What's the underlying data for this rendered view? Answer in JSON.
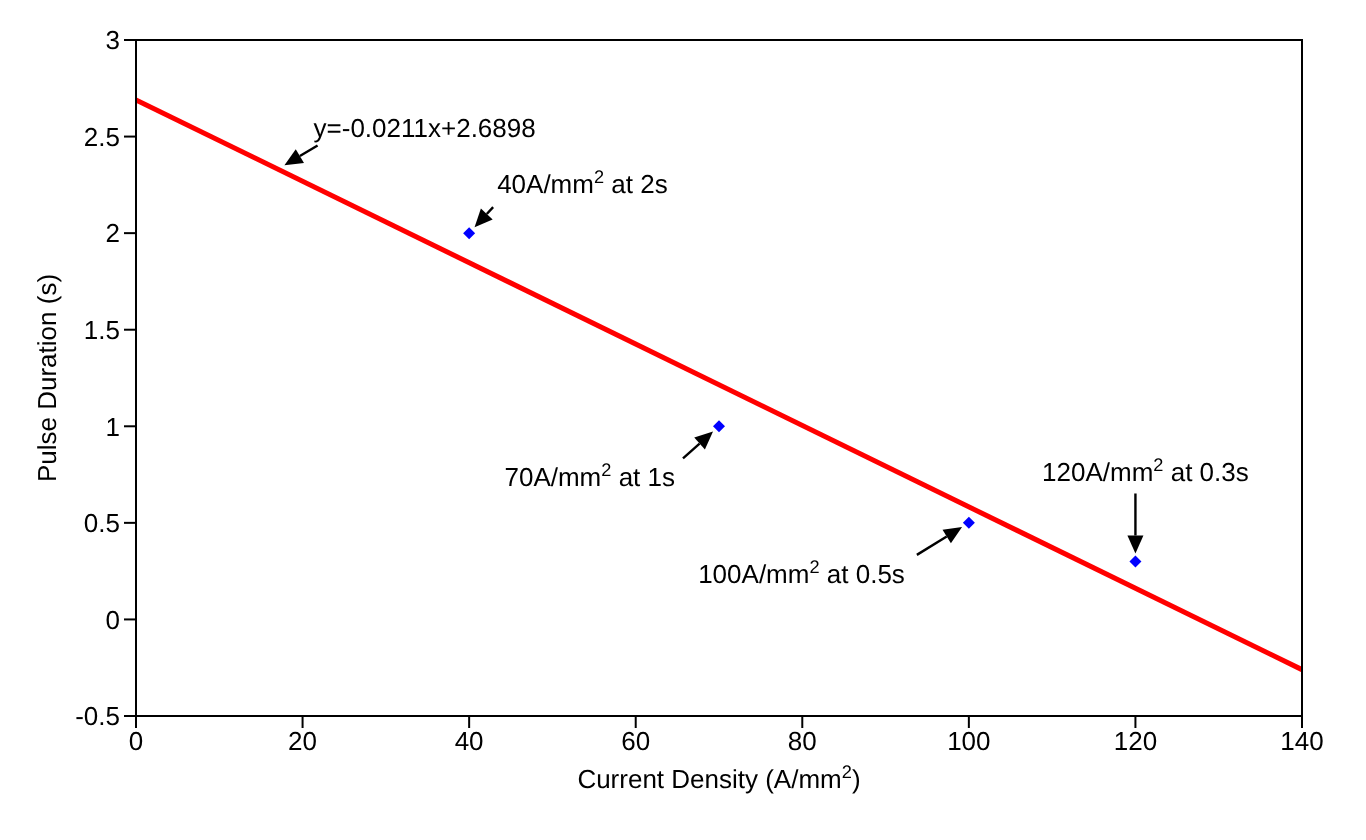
{
  "chart_data": {
    "type": "scatter",
    "xlabel": "Current Density (A/mm$^{2}$)",
    "ylabel": "Pulse Duration (s)",
    "xlim": [
      0,
      140
    ],
    "xticks": [
      0,
      20,
      40,
      60,
      80,
      100,
      120,
      140
    ],
    "ylim": [
      -0.5,
      3
    ],
    "yticks": [
      -0.5,
      0,
      0.5,
      1,
      1.5,
      2,
      2.5,
      3
    ],
    "marker": "diamond",
    "series": [
      {
        "type": "line",
        "color": "#ff0000",
        "x": [
          0,
          140
        ],
        "values": [
          2.69,
          -0.26
        ],
        "line_style": "solid",
        "marker": "none"
      },
      {
        "color": "#0000ff",
        "x": [
          40,
          70,
          100,
          120
        ],
        "values": [
          2,
          1,
          0.5,
          0.3
        ]
      }
    ],
    "annotations": [
      {
        "text": "y=-0.0211x+2.6898",
        "x": 17,
        "y": 2.33
      },
      {
        "text": "40A/mm$^{2}$ at 2s",
        "x": 40,
        "y": 2
      },
      {
        "text": "70A/mm$^{2}$ at 1s",
        "x": 70,
        "y": 1
      },
      {
        "text": "100A/mm$^{2}$ at 0.5s",
        "x": 100,
        "y": 0.5
      },
      {
        "text": "120A/mm$^{2}$ at 0.3s",
        "x": 120,
        "y": 0.3
      }
    ]
  }
}
